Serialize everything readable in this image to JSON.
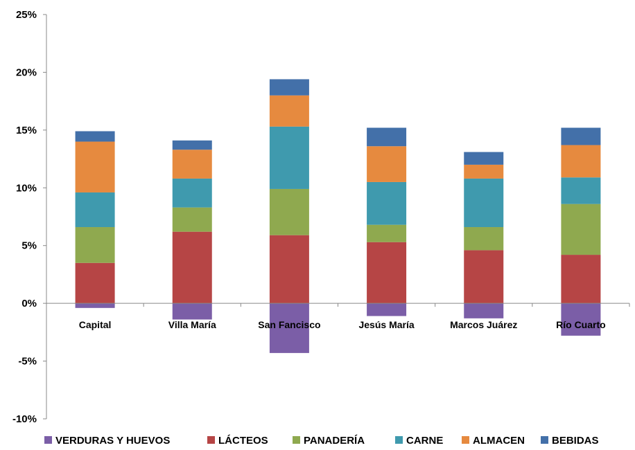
{
  "chart_data": {
    "type": "bar",
    "stacked": true,
    "categories": [
      "Capital",
      "Villa María",
      "San Fancisco",
      "Jesús María",
      "Marcos Juárez",
      "Río Cuarto"
    ],
    "series": [
      {
        "name": "VERDURAS Y HUEVOS",
        "color": "#7b5ea7",
        "values": [
          -0.4,
          -1.4,
          -4.3,
          -1.1,
          -1.3,
          -2.8
        ]
      },
      {
        "name": "LÁCTEOS",
        "color": "#b64545",
        "values": [
          3.5,
          6.2,
          5.9,
          5.3,
          4.6,
          4.2
        ]
      },
      {
        "name": "PANADERÍA",
        "color": "#8fa94f",
        "values": [
          3.1,
          2.1,
          4.0,
          1.5,
          2.0,
          4.4
        ]
      },
      {
        "name": "CARNE",
        "color": "#3f9aae",
        "values": [
          3.0,
          2.5,
          5.4,
          3.7,
          4.2,
          2.3
        ]
      },
      {
        "name": "ALMACEN",
        "color": "#e68a3f",
        "values": [
          4.4,
          2.5,
          2.7,
          3.1,
          1.2,
          2.8
        ]
      },
      {
        "name": "BEBIDAS",
        "color": "#4370a9",
        "values": [
          0.9,
          0.8,
          1.4,
          1.6,
          1.1,
          1.5
        ]
      }
    ],
    "yticks": [
      "25%",
      "20%",
      "15%",
      "10%",
      "5%",
      "0%",
      "-5%",
      "-10%"
    ],
    "ytick_values": [
      25,
      20,
      15,
      10,
      5,
      0,
      -5,
      -10
    ],
    "ylim": [
      -10,
      25
    ],
    "grid": false,
    "legend": "bottom"
  }
}
